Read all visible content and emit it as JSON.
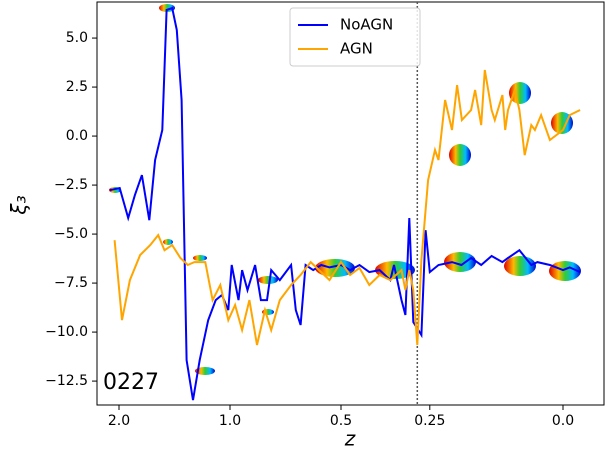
{
  "chart_data": {
    "type": "line",
    "x_label": "z",
    "y_label": "ξ₃",
    "annotation": "0227",
    "xscale": "one-over-one-plus",
    "xlim": [
      2.33,
      -0.058
    ],
    "xticks": [
      {
        "value": 2,
        "label": "2.0"
      },
      {
        "value": 1,
        "label": "1.0"
      },
      0.5,
      0.25,
      {
        "value": 0,
        "label": "0.0"
      }
    ],
    "ylim": [
      -13.72,
      6.84
    ],
    "yticks": [
      {
        "value": 5,
        "label": "5.0"
      },
      2.5,
      {
        "value": 0,
        "label": "0.0"
      },
      {
        "value": -2.5,
        "label": "−2.5"
      },
      {
        "value": -5,
        "label": "−5.0"
      },
      {
        "value": -7.5,
        "label": "−7.5"
      },
      {
        "value": -10,
        "label": "−10.0"
      },
      {
        "value": -12.5,
        "label": "−12.5"
      }
    ],
    "vline": 0.28,
    "legend": "upper-center",
    "series": [
      {
        "name": "NoAGN",
        "color": "#0000ff",
        "x": [
          2.13,
          1.99,
          1.88,
          1.8,
          1.72,
          1.64,
          1.58,
          1.51,
          1.47,
          1.42,
          1.38,
          1.34,
          1.3,
          1.25,
          1.2,
          1.14,
          1.09,
          1.05,
          1.01,
          0.99,
          0.95,
          0.93,
          0.9,
          0.86,
          0.83,
          0.8,
          0.78,
          0.74,
          0.69,
          0.67,
          0.65,
          0.63,
          0.6,
          0.57,
          0.54,
          0.5,
          0.47,
          0.44,
          0.41,
          0.38,
          0.35,
          0.34,
          0.32,
          0.31,
          0.3,
          0.29,
          0.27,
          0.26,
          0.25,
          0.23,
          0.2,
          0.18,
          0.16,
          0.14,
          0.12,
          0.1,
          0.09,
          0.07,
          0.05,
          0.04,
          0.02,
          0.0,
          -0.01,
          -0.025
        ],
        "values": [
          -2.76,
          -2.65,
          -4.18,
          -3.01,
          -1.99,
          -4.29,
          -1.22,
          0.31,
          6.43,
          6.53,
          5.41,
          1.84,
          -11.43,
          -13.47,
          -11.43,
          -9.39,
          -8.37,
          -8.11,
          -8.88,
          -6.58,
          -8.37,
          -6.84,
          -7.86,
          -6.58,
          -8.37,
          -8.37,
          -6.84,
          -7.35,
          -6.58,
          -8.88,
          -9.64,
          -6.58,
          -6.84,
          -6.58,
          -6.7,
          -6.58,
          -6.84,
          -6.58,
          -6.94,
          -6.84,
          -7.35,
          -6.58,
          -8.37,
          -9.13,
          -4.18,
          -9.49,
          -10.15,
          -4.8,
          -6.94,
          -6.58,
          -6.43,
          -6.58,
          -6.22,
          -6.58,
          -6.12,
          -6.43,
          -6.22,
          -5.82,
          -6.58,
          -6.43,
          -6.58,
          -6.84,
          -6.7,
          -6.94
        ]
      },
      {
        "name": "AGN",
        "color": "#ffa500",
        "x": [
          2.06,
          1.96,
          1.86,
          1.74,
          1.63,
          1.55,
          1.49,
          1.42,
          1.35,
          1.29,
          1.24,
          1.16,
          1.11,
          1.06,
          1.01,
          0.97,
          0.93,
          0.89,
          0.85,
          0.81,
          0.78,
          0.74,
          0.69,
          0.65,
          0.61,
          0.57,
          0.54,
          0.5,
          0.47,
          0.44,
          0.41,
          0.38,
          0.35,
          0.32,
          0.31,
          0.3,
          0.29,
          0.28,
          0.27,
          0.254,
          0.238,
          0.23,
          0.215,
          0.2,
          0.189,
          0.179,
          0.16,
          0.152,
          0.14,
          0.133,
          0.12,
          0.114,
          0.1,
          0.095,
          0.09,
          0.078,
          0.07,
          0.061,
          0.05,
          0.044,
          0.034,
          0.02,
          0.0,
          -0.01,
          -0.025
        ],
        "values": [
          -5.31,
          -9.39,
          -7.35,
          -6.07,
          -5.56,
          -5.05,
          -5.82,
          -5.56,
          -6.22,
          -6.58,
          -6.43,
          -6.43,
          -8.37,
          -7.6,
          -9.39,
          -8.62,
          -9.9,
          -8.37,
          -10.66,
          -8.88,
          -9.9,
          -8.37,
          -7.6,
          -7.09,
          -6.43,
          -6.94,
          -7.35,
          -6.43,
          -7.09,
          -6.73,
          -7.6,
          -7.09,
          -7.35,
          -6.84,
          -7.86,
          -6.84,
          -7.86,
          -10.66,
          -6.33,
          -2.24,
          -0.71,
          -1.22,
          1.84,
          0.31,
          2.6,
          0.82,
          1.33,
          2.35,
          0.56,
          3.37,
          1.33,
          0.82,
          2.09,
          0.31,
          1.33,
          2.35,
          1.33,
          -0.97,
          0.56,
          0.31,
          1.07,
          -0.2,
          0.31,
          1.07,
          1.33
        ]
      }
    ]
  }
}
